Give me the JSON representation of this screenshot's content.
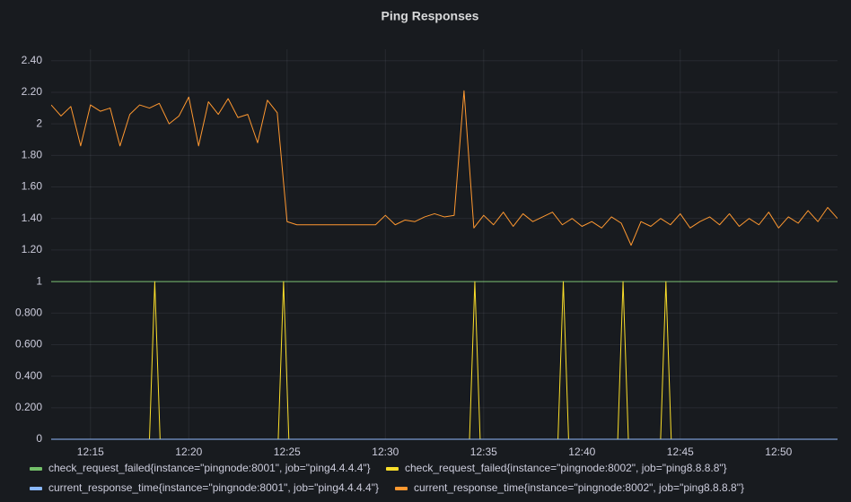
{
  "chart_data": {
    "type": "line",
    "title": "Ping Responses",
    "xlim": [
      13,
      53
    ],
    "xticks": [
      {
        "value": 15,
        "label": "12:15"
      },
      {
        "value": 20,
        "label": "12:20"
      },
      {
        "value": 25,
        "label": "12:25"
      },
      {
        "value": 30,
        "label": "12:30"
      },
      {
        "value": 35,
        "label": "12:35"
      },
      {
        "value": 40,
        "label": "12:40"
      },
      {
        "value": 45,
        "label": "12:45"
      },
      {
        "value": 50,
        "label": "12:50"
      }
    ],
    "ylim": [
      0,
      2.45
    ],
    "yticks": [
      0,
      {
        "value": 0.2,
        "label": "0.200"
      },
      {
        "value": 0.4,
        "label": "0.400"
      },
      {
        "value": 0.6,
        "label": "0.600"
      },
      {
        "value": 0.8,
        "label": "0.800"
      },
      1,
      {
        "value": 1.2,
        "label": "1.20"
      },
      {
        "value": 1.4,
        "label": "1.40"
      },
      {
        "value": 1.6,
        "label": "1.60"
      },
      {
        "value": 1.8,
        "label": "1.80"
      },
      2,
      {
        "value": 2.2,
        "label": "2.20"
      },
      {
        "value": 2.4,
        "label": "2.40"
      }
    ],
    "grid": true,
    "series": [
      {
        "name": "check_request_failed{instance=\"pingnode:8001\", job=\"ping4.4.4.4\"}",
        "color": "#73bf69",
        "x": [
          13,
          53
        ],
        "values": [
          1,
          1
        ]
      },
      {
        "name": "check_request_failed{instance=\"pingnode:8002\", job=\"ping8.8.8.8\"}",
        "color": "#fade2a",
        "x": [
          13,
          18,
          18.27,
          18.54,
          24.55,
          24.82,
          25.09,
          34.28,
          34.55,
          34.82,
          38.78,
          39.05,
          39.32,
          41.82,
          42.09,
          42.36,
          44,
          44.27,
          44.54,
          53
        ],
        "values": [
          0,
          0,
          1,
          0,
          0,
          1,
          0,
          0,
          1,
          0,
          0,
          1,
          0,
          0,
          1,
          0,
          0,
          1,
          0,
          0
        ]
      },
      {
        "name": "current_response_time{instance=\"pingnode:8001\", job=\"ping4.4.4.4\"}",
        "color": "#8ab8ff",
        "x": [
          13,
          53
        ],
        "values": [
          0,
          0
        ]
      },
      {
        "name": "current_response_time{instance=\"pingnode:8002\", job=\"ping8.8.8.8\"}",
        "color": "#ff9830",
        "x": [
          13,
          13.5,
          14,
          14.5,
          15,
          15.5,
          16,
          16.5,
          17,
          17.5,
          18,
          18.5,
          19,
          19.5,
          20,
          20.5,
          21,
          21.5,
          22,
          22.5,
          23,
          23.5,
          24,
          24.5,
          25,
          25.5,
          26,
          26.5,
          27,
          27.5,
          28,
          28.5,
          29,
          29.5,
          30,
          30.5,
          31,
          31.5,
          32,
          32.5,
          33,
          33.5,
          34,
          34.5,
          35,
          35.5,
          36,
          36.5,
          37,
          37.5,
          38,
          38.5,
          39,
          39.5,
          40,
          40.5,
          41,
          41.5,
          42,
          42.5,
          43,
          43.5,
          44,
          44.5,
          45,
          45.5,
          46,
          46.5,
          47,
          47.5,
          48,
          48.5,
          49,
          49.5,
          50,
          50.5,
          51,
          51.5,
          52,
          52.5,
          53
        ],
        "values": [
          2.12,
          2.05,
          2.11,
          1.86,
          2.12,
          2.08,
          2.1,
          1.86,
          2.06,
          2.12,
          2.1,
          2.13,
          2.0,
          2.05,
          2.17,
          1.86,
          2.14,
          2.06,
          2.16,
          2.04,
          2.06,
          1.88,
          2.15,
          2.07,
          1.38,
          1.36,
          1.36,
          1.36,
          1.36,
          1.36,
          1.36,
          1.36,
          1.36,
          1.36,
          1.42,
          1.36,
          1.39,
          1.38,
          1.41,
          1.43,
          1.41,
          1.42,
          2.21,
          1.34,
          1.42,
          1.36,
          1.44,
          1.35,
          1.43,
          1.38,
          1.41,
          1.44,
          1.36,
          1.4,
          1.35,
          1.38,
          1.34,
          1.41,
          1.37,
          1.23,
          1.38,
          1.35,
          1.4,
          1.36,
          1.43,
          1.34,
          1.38,
          1.41,
          1.36,
          1.43,
          1.35,
          1.4,
          1.36,
          1.44,
          1.34,
          1.41,
          1.37,
          1.45,
          1.38,
          1.47,
          1.4
        ]
      }
    ]
  }
}
